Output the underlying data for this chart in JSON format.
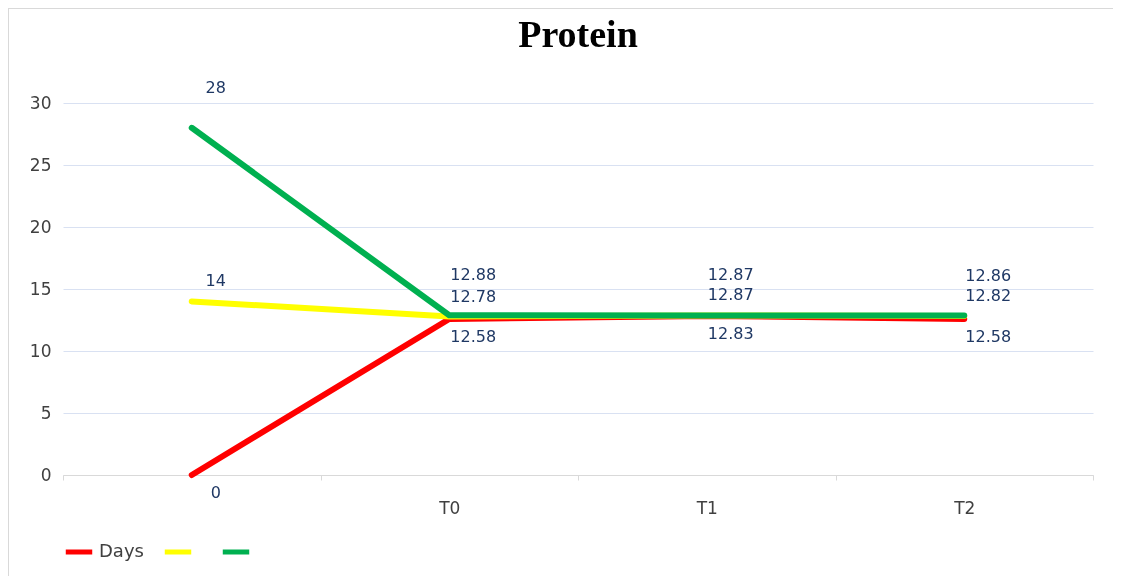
{
  "chart_data": {
    "type": "line",
    "title": "Protein",
    "categories": [
      null,
      "T0",
      "T1",
      "T2"
    ],
    "series": [
      {
        "name": "Days",
        "color": "#ff0000",
        "values": [
          0,
          12.58,
          12.83,
          12.58
        ]
      },
      {
        "color": "#ffff00",
        "values": [
          14,
          12.78,
          12.87,
          12.82
        ]
      },
      {
        "color": "#00b050",
        "values": [
          28,
          12.88,
          12.87,
          12.86
        ]
      }
    ],
    "ylim": [
      0,
      30
    ],
    "yticks": [
      0,
      5,
      10,
      15,
      20,
      25,
      30
    ],
    "grid": "y",
    "legend": "bottom",
    "data_labels": true
  }
}
